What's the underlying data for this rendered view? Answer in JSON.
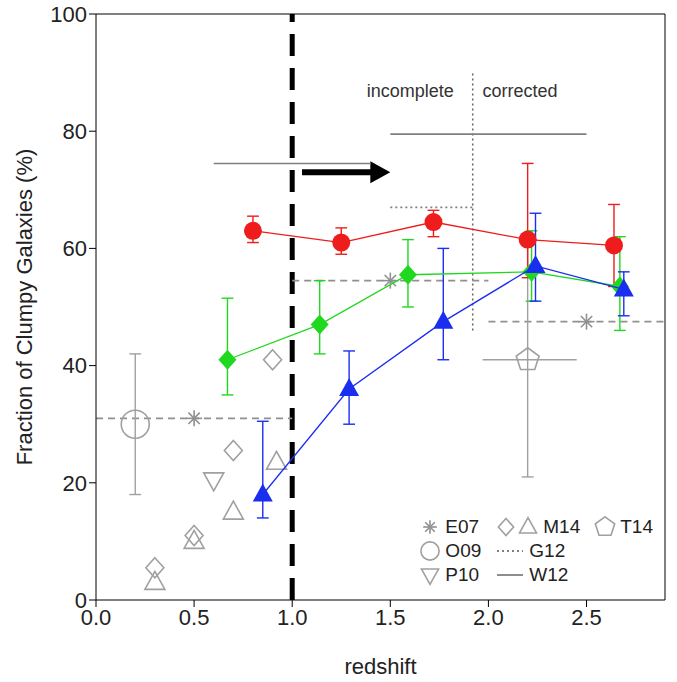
{
  "chart_data": {
    "type": "scatter",
    "xlabel": "redshift",
    "ylabel": "Fraction of Clumpy Galaxies (%)",
    "xlim": [
      0,
      2.9
    ],
    "ylim": [
      0,
      100
    ],
    "xticks": [
      {
        "value": 0,
        "label": "0.0"
      },
      {
        "value": 0.5,
        "label": "0.5"
      },
      {
        "value": 1,
        "label": "1.0"
      },
      {
        "value": 1.5,
        "label": "1.5"
      },
      {
        "value": 2,
        "label": "2.0"
      },
      {
        "value": 2.5,
        "label": "2.5"
      }
    ],
    "yticks": [
      0,
      20,
      40,
      60,
      80,
      100
    ],
    "grid": false,
    "legend": "bottom right",
    "series": [
      {
        "name": "E07",
        "color": "#909090",
        "marker": "asterisk",
        "line_style": "dashed",
        "x": [
          0.5,
          1.5,
          2.5
        ],
        "values": [
          31,
          54.5,
          47.5
        ],
        "x_low": [
          0,
          1,
          2
        ],
        "x_high": [
          1,
          2,
          2.9
        ]
      },
      {
        "name": "O09",
        "color": "#a0a0a0",
        "marker": "ring",
        "line_style": "none",
        "x": [
          0.2
        ],
        "values": [
          30
        ],
        "y_low": [
          18
        ],
        "y_high": [
          42
        ]
      },
      {
        "name": "P10",
        "color": "#a0a0a0",
        "marker": "triangle_down_open",
        "line_style": "none",
        "x": [
          0.6
        ],
        "values": [
          20.5
        ]
      },
      {
        "name": "M14",
        "color": "#a0a0a0",
        "marker": "diamond_open",
        "line_style": "none",
        "x": [
          0.3,
          0.5,
          0.7,
          0.9
        ],
        "values": [
          5.5,
          11,
          25.5,
          41
        ]
      },
      {
        "name": "M14",
        "color": "#a0a0a0",
        "marker": "triangle_open",
        "line_style": "none",
        "x": [
          0.3,
          0.5,
          0.7,
          0.92
        ],
        "values": [
          3,
          10,
          15,
          23.5
        ]
      },
      {
        "name": "G12",
        "color": "#808080",
        "marker": "none",
        "line_style": "dotted",
        "x": [
          1.71
        ],
        "values": [
          67
        ],
        "x_low": [
          1.5
        ],
        "x_high": [
          1.92
        ]
      },
      {
        "name": "W12",
        "color": "#808080",
        "marker": "none",
        "line_style": "solid",
        "x": [
          1.0,
          2.0
        ],
        "values": [
          74.5,
          79.5
        ],
        "x_low": [
          0.6,
          1.5
        ],
        "x_high": [
          1.4,
          2.5
        ]
      },
      {
        "name": "T14",
        "color": "#a0a0a0",
        "marker": "pentagon_open",
        "line_style": "solid",
        "x": [
          2.2
        ],
        "values": [
          41
        ],
        "x_low": [
          1.97
        ],
        "x_high": [
          2.45
        ],
        "y_low": [
          21
        ],
        "y_high": [
          61
        ]
      },
      {
        "color": "#ee1c1c",
        "marker": "circle",
        "line_style": "solid",
        "x": [
          0.8,
          1.25,
          1.72,
          2.2,
          2.64
        ],
        "values": [
          63,
          61,
          64.5,
          61.5,
          60.5
        ],
        "y_low": [
          61,
          59,
          62,
          55,
          53.5
        ],
        "y_high": [
          65.5,
          63.5,
          66.5,
          74.5,
          67.5
        ]
      },
      {
        "color": "#1fd81f",
        "marker": "diamond",
        "line_style": "solid",
        "x": [
          0.67,
          1.14,
          1.59,
          2.22,
          2.67
        ],
        "values": [
          41,
          47,
          55.5,
          56,
          53.5
        ],
        "y_low": [
          35,
          42,
          50,
          51,
          46
        ],
        "y_high": [
          51.5,
          54.5,
          61.5,
          63,
          62
        ]
      },
      {
        "color": "#1a2ef0",
        "marker": "triangle",
        "line_style": "solid",
        "x": [
          0.85,
          1.29,
          1.77,
          2.24,
          2.69
        ],
        "values": [
          18,
          36,
          47.5,
          57,
          53
        ],
        "y_low": [
          14,
          30,
          41,
          51,
          48.5
        ],
        "y_high": [
          30.5,
          42.5,
          60,
          66,
          56
        ]
      }
    ],
    "annotations": [
      {
        "type": "vline",
        "x": 1.0,
        "line_style": "dashed"
      },
      {
        "type": "arrow",
        "x": [
          1.05,
          1.5
        ],
        "y": 73
      },
      {
        "type": "vline",
        "x": 1.92,
        "y": [
          46,
          90
        ],
        "line_style": "dotted"
      },
      {
        "type": "text",
        "text": "incomplete",
        "x": 1.38,
        "y": 87
      },
      {
        "type": "text",
        "text": "corrected",
        "x": 1.97,
        "y": 87
      }
    ]
  }
}
